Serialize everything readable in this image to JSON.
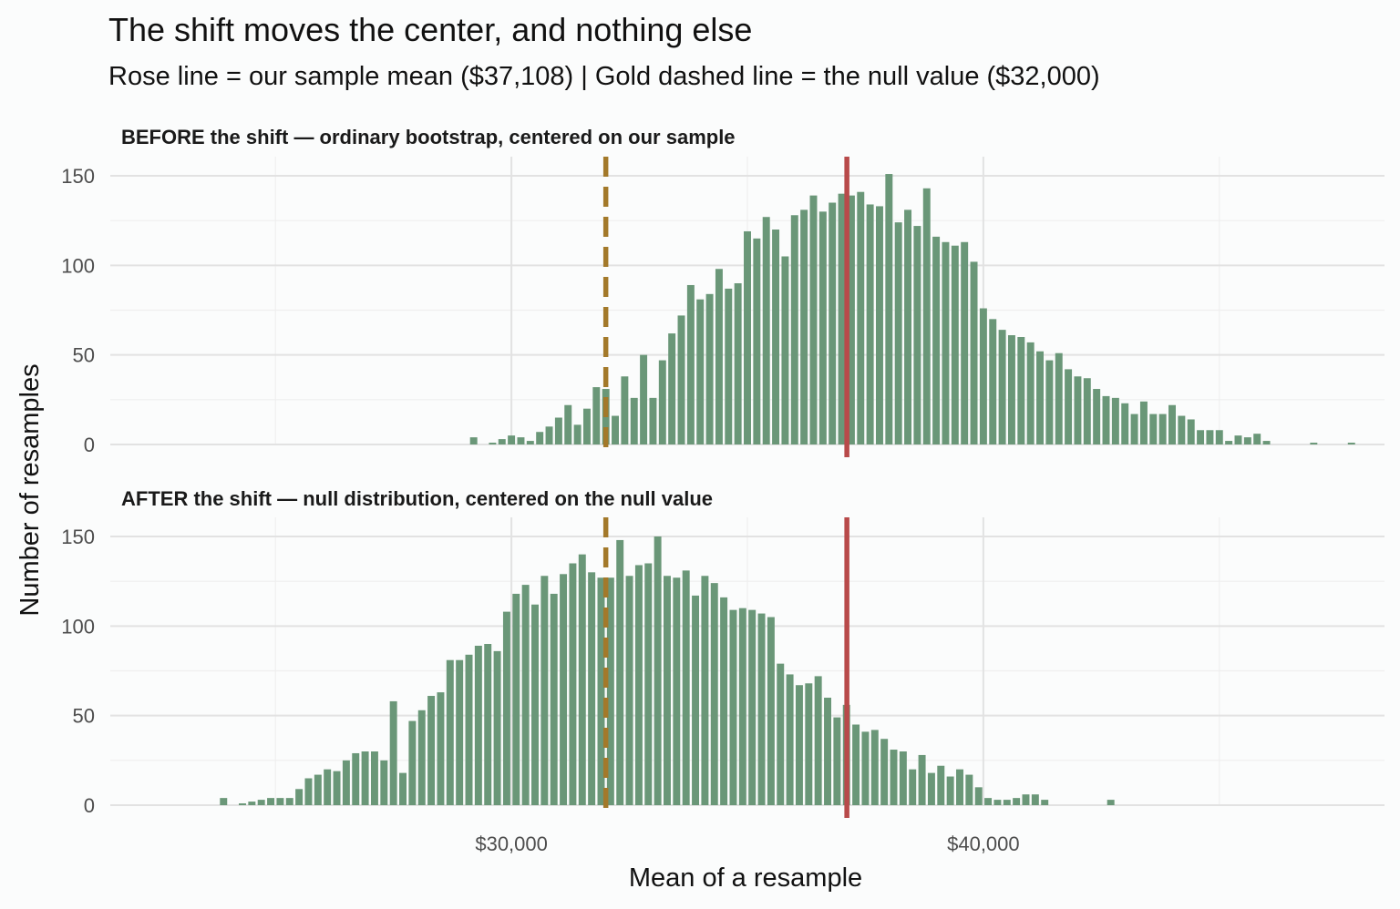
{
  "chart_data": {
    "type": "bar",
    "title": "The shift moves the center, and nothing else",
    "subtitle": "Rose line = our sample mean ($37,108)  |  Gold dashed line = the null value ($32,000)",
    "xlabel": "Mean of a resample",
    "ylabel": "Number of resamples",
    "x_ticks": [
      {
        "value": 30000,
        "label": "$30,000"
      },
      {
        "value": 40000,
        "label": "$40,000"
      }
    ],
    "y_ticks": [
      0,
      50,
      100,
      150
    ],
    "xlim": [
      21500,
      48500
    ],
    "ylim": [
      0,
      160
    ],
    "bin_width": 200,
    "grid": true,
    "colors": {
      "bars": "#6a9778",
      "sample_mean_line": "#b84a4a",
      "null_line": "#a3792a",
      "grid_major": "#e2e2e2",
      "grid_minor": "#efefef",
      "background": "#fbfcfc"
    },
    "reference_lines": [
      {
        "name": "sample_mean",
        "value": 37108,
        "style": "solid"
      },
      {
        "name": "null_value",
        "value": 32000,
        "style": "dashed"
      }
    ],
    "panels": [
      {
        "label": "BEFORE the shift — ordinary bootstrap, centered on our sample",
        "bin_start": 29100,
        "counts": [
          4,
          0,
          1,
          3,
          5,
          4,
          2,
          7,
          10,
          15,
          22,
          11,
          20,
          32,
          31,
          16,
          38,
          26,
          50,
          26,
          47,
          62,
          72,
          89,
          81,
          84,
          98,
          87,
          90,
          119,
          115,
          127,
          120,
          105,
          128,
          131,
          139,
          130,
          135,
          140,
          139,
          141,
          134,
          133,
          151,
          124,
          131,
          122,
          143,
          116,
          113,
          111,
          113,
          102,
          76,
          70,
          64,
          61,
          60,
          57,
          52,
          47,
          51,
          42,
          38,
          37,
          31,
          27,
          26,
          23,
          17,
          24,
          17,
          17,
          22,
          16,
          14,
          8,
          8,
          8,
          2,
          5,
          4,
          6,
          2,
          0,
          0,
          0,
          0,
          1,
          0,
          0,
          0,
          1,
          0,
          0,
          0,
          0,
          0,
          0,
          0,
          0,
          0,
          0,
          0
        ]
      },
      {
        "label": "AFTER the shift — null distribution, centered on the null value",
        "bin_start": 23800,
        "counts": [
          4,
          0,
          1,
          2,
          3,
          4,
          4,
          4,
          9,
          15,
          17,
          20,
          19,
          25,
          29,
          30,
          30,
          25,
          58,
          18,
          47,
          53,
          61,
          63,
          81,
          81,
          84,
          89,
          90,
          86,
          108,
          118,
          123,
          112,
          128,
          118,
          129,
          135,
          140,
          130,
          127,
          127,
          148,
          128,
          134,
          135,
          150,
          128,
          127,
          131,
          117,
          128,
          124,
          116,
          109,
          110,
          109,
          107,
          105,
          79,
          73,
          67,
          68,
          72,
          60,
          49,
          56,
          45,
          41,
          42,
          37,
          31,
          30,
          20,
          28,
          18,
          22,
          16,
          20,
          17,
          10,
          4,
          3,
          3,
          4,
          6,
          6,
          3,
          0,
          0,
          0,
          0,
          0,
          0,
          3
        ]
      }
    ]
  }
}
